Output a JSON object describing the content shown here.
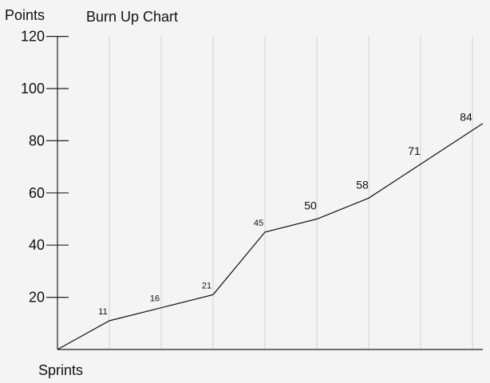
{
  "chart_data": {
    "type": "line",
    "title": "Burn Up Chart",
    "xlabel": "Sprints",
    "ylabel": "Points",
    "ylim": [
      0,
      120
    ],
    "yticks": [
      20,
      40,
      60,
      80,
      100,
      120
    ],
    "xlim": [
      0,
      8.2
    ],
    "grid": true,
    "x": [
      0,
      1,
      2,
      3,
      4,
      5,
      6,
      7,
      8
    ],
    "values": [
      0,
      11,
      16,
      21,
      45,
      50,
      58,
      71,
      84
    ],
    "labels": [
      "",
      "11",
      "16",
      "21",
      "45",
      "50",
      "58",
      "71",
      "84"
    ]
  }
}
